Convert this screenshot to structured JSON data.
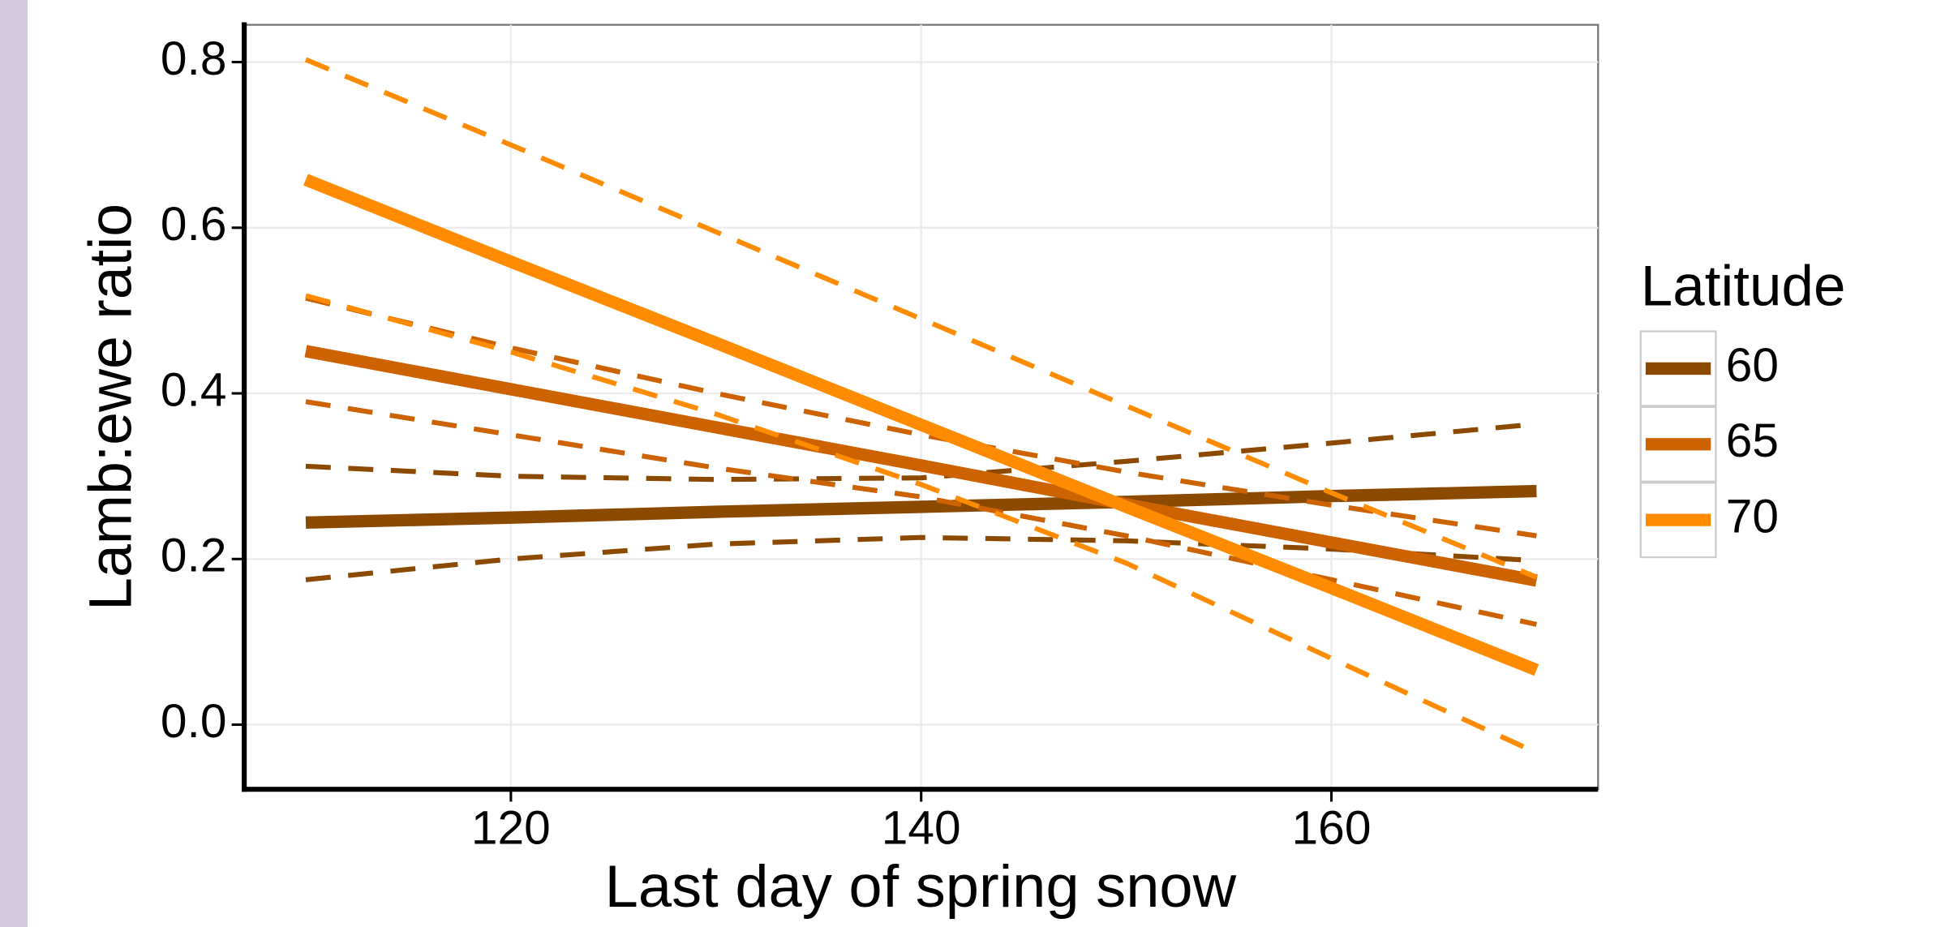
{
  "chart_data": {
    "type": "line",
    "x_label": "Last day of spring snow",
    "y_label": "Lamb:ewe ratio",
    "legend_title": "Latitude",
    "legend": "right",
    "grid": true,
    "x": [
      110,
      120,
      130,
      140,
      150,
      160,
      170
    ],
    "xlim": [
      107,
      173
    ],
    "xticks": [
      120,
      140,
      160
    ],
    "ylim": [
      -0.078,
      0.845
    ],
    "yticks": [
      {
        "value": 0,
        "label": "0.0"
      },
      {
        "value": 0.2,
        "label": "0.2"
      },
      {
        "value": 0.4,
        "label": "0.4"
      },
      {
        "value": 0.6,
        "label": "0.6"
      },
      {
        "value": 0.8,
        "label": "0.8"
      }
    ],
    "series": [
      {
        "name": "60",
        "color": "#8c4a00",
        "values": [
          0.244,
          0.25,
          0.257,
          0.263,
          0.269,
          0.276,
          0.282
        ],
        "lower": [
          0.175,
          0.2,
          0.218,
          0.226,
          0.222,
          0.212,
          0.198
        ],
        "upper": [
          0.312,
          0.3,
          0.296,
          0.298,
          0.318,
          0.34,
          0.363
        ]
      },
      {
        "name": "65",
        "color": "#cc6200",
        "values": [
          0.451,
          0.405,
          0.359,
          0.313,
          0.266,
          0.22,
          0.174
        ],
        "lower": [
          0.39,
          0.35,
          0.31,
          0.275,
          0.228,
          0.175,
          0.121
        ],
        "upper": [
          0.515,
          0.455,
          0.4,
          0.35,
          0.305,
          0.265,
          0.228
        ]
      },
      {
        "name": "70",
        "color": "#ff8c00",
        "values": [
          0.658,
          0.559,
          0.461,
          0.362,
          0.263,
          0.165,
          0.066
        ],
        "lower": [
          0.518,
          0.45,
          0.375,
          0.29,
          0.195,
          0.08,
          -0.034
        ],
        "upper": [
          0.803,
          0.7,
          0.595,
          0.49,
          0.385,
          0.28,
          0.178
        ]
      }
    ]
  }
}
